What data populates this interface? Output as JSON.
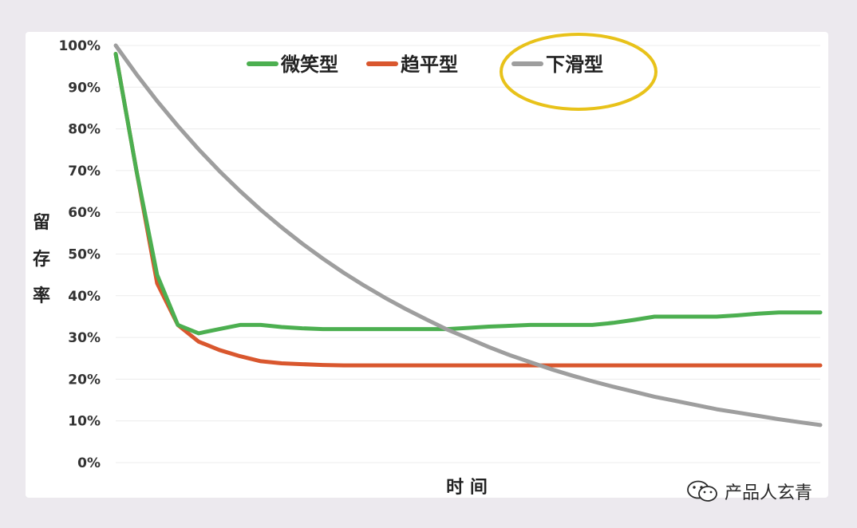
{
  "chart_data": {
    "type": "line",
    "title": "",
    "xlabel": "时 间",
    "ylabel": "留存率",
    "yticks": [
      "0%",
      "10%",
      "20%",
      "30%",
      "40%",
      "50%",
      "60%",
      "70%",
      "80%",
      "90%",
      "100%"
    ],
    "ylim": [
      0,
      100
    ],
    "xlim": [
      0,
      34
    ],
    "grid": true,
    "legend_position": "top",
    "x": [
      0,
      1,
      2,
      3,
      4,
      5,
      6,
      7,
      8,
      9,
      10,
      11,
      12,
      13,
      14,
      15,
      16,
      17,
      18,
      19,
      20,
      21,
      22,
      23,
      24,
      25,
      26,
      27,
      28,
      29,
      30,
      31,
      32,
      33,
      34
    ],
    "series": [
      {
        "name": "微笑型",
        "color": "#4caf50",
        "values": [
          98,
          70,
          45,
          33,
          31,
          32,
          33,
          33,
          32.5,
          32.2,
          32,
          32,
          32,
          32,
          32,
          32,
          32,
          32.3,
          32.6,
          32.8,
          33,
          33,
          33,
          33,
          33.5,
          34.2,
          35,
          35,
          35,
          35,
          35.3,
          35.7,
          36,
          36,
          36
        ]
      },
      {
        "name": "趋平型",
        "color": "#d9572e",
        "values": [
          98,
          70,
          43,
          33,
          29,
          27,
          25.5,
          24.3,
          23.8,
          23.6,
          23.4,
          23.3,
          23.3,
          23.3,
          23.3,
          23.3,
          23.3,
          23.3,
          23.3,
          23.3,
          23.3,
          23.3,
          23.3,
          23.3,
          23.3,
          23.3,
          23.3,
          23.3,
          23.3,
          23.3,
          23.3,
          23.3,
          23.3,
          23.3,
          23.3
        ]
      },
      {
        "name": "下滑型",
        "color": "#9e9e9e",
        "values": [
          100,
          93.1,
          86.7,
          80.7,
          75.1,
          69.9,
          65.1,
          60.6,
          56.4,
          52.5,
          48.9,
          45.5,
          42.4,
          39.5,
          36.8,
          34.3,
          31.9,
          29.8,
          27.7,
          25.8,
          24.1,
          22.4,
          20.9,
          19.5,
          18.2,
          17,
          15.8,
          14.8,
          13.8,
          12.8,
          12,
          11.2,
          10.4,
          9.7,
          9
        ]
      }
    ],
    "highlight": {
      "target": "下滑型",
      "shape": "ellipse",
      "color": "#e8c21a"
    }
  },
  "watermark": {
    "text": "产品人玄青",
    "icon": "wechat-icon"
  }
}
